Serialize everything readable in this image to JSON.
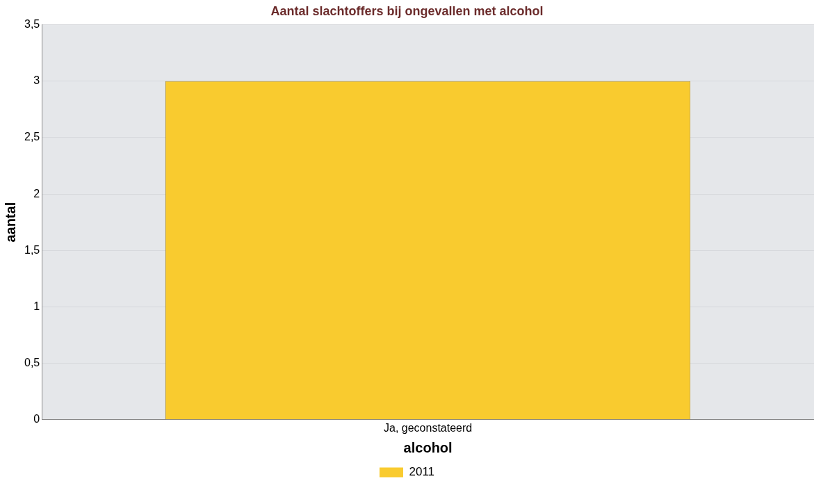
{
  "chart_data": {
    "type": "bar",
    "title": "Aantal slachtoffers bij ongevallen met alcohol",
    "xlabel": "alcohol",
    "ylabel": "aantal",
    "categories": [
      "Ja, geconstateerd"
    ],
    "series": [
      {
        "name": "2011",
        "color": "#f9cb2f",
        "values": [
          3
        ]
      }
    ],
    "ylim": [
      0,
      3.5
    ],
    "yticks": [
      0,
      {
        "value": 0.5,
        "label": "0,5"
      },
      1,
      {
        "value": 1.5,
        "label": "1,5"
      },
      2,
      {
        "value": 2.5,
        "label": "2,5"
      },
      3,
      {
        "value": 3.5,
        "label": "3,5"
      }
    ],
    "grid": "y",
    "legend": "bottom"
  }
}
